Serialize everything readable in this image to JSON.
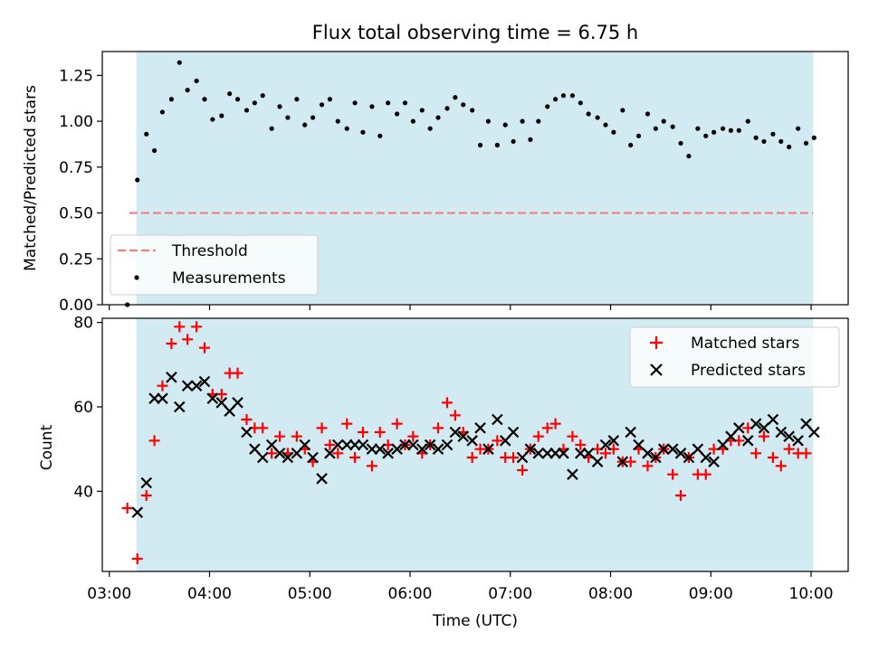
{
  "chart_data": [
    {
      "type": "scatter",
      "title": "Flux total observing time = 6.75 h",
      "ylabel": "Matched/Predicted stars",
      "xlabel": "",
      "x_unit": "hours UTC",
      "xlim": [
        2.93,
        10.37
      ],
      "ylim": [
        0,
        1.38
      ],
      "yticks": [
        "0.00",
        "0.25",
        "0.50",
        "0.75",
        "1.00",
        "1.25"
      ],
      "ytick_values": [
        0,
        0.25,
        0.5,
        0.75,
        1.0,
        1.25
      ],
      "observing_window": [
        3.27,
        10.02
      ],
      "threshold": {
        "label": "Threshold",
        "value": 0.5,
        "x_range": [
          3.2,
          10.02
        ],
        "color": "#f08080"
      },
      "legend": {
        "position": "lower-left",
        "entries": [
          "Threshold",
          "Measurements"
        ]
      },
      "series": [
        {
          "name": "Measurements",
          "color": "#000000",
          "points": [
            [
              3.18,
              0.0
            ],
            [
              3.28,
              0.68
            ],
            [
              3.37,
              0.93
            ],
            [
              3.45,
              0.84
            ],
            [
              3.53,
              1.05
            ],
            [
              3.62,
              1.12
            ],
            [
              3.7,
              1.32
            ],
            [
              3.78,
              1.17
            ],
            [
              3.87,
              1.22
            ],
            [
              3.95,
              1.12
            ],
            [
              4.03,
              1.01
            ],
            [
              4.12,
              1.03
            ],
            [
              4.2,
              1.15
            ],
            [
              4.28,
              1.12
            ],
            [
              4.37,
              1.06
            ],
            [
              4.45,
              1.1
            ],
            [
              4.53,
              1.14
            ],
            [
              4.62,
              0.96
            ],
            [
              4.7,
              1.08
            ],
            [
              4.78,
              1.02
            ],
            [
              4.87,
              1.12
            ],
            [
              4.95,
              0.98
            ],
            [
              5.03,
              1.02
            ],
            [
              5.12,
              1.09
            ],
            [
              5.2,
              1.12
            ],
            [
              5.28,
              1.0
            ],
            [
              5.37,
              0.96
            ],
            [
              5.45,
              1.1
            ],
            [
              5.53,
              0.94
            ],
            [
              5.62,
              1.08
            ],
            [
              5.7,
              0.92
            ],
            [
              5.78,
              1.1
            ],
            [
              5.87,
              1.04
            ],
            [
              5.95,
              1.1
            ],
            [
              6.03,
              1.0
            ],
            [
              6.12,
              1.06
            ],
            [
              6.2,
              0.96
            ],
            [
              6.28,
              1.02
            ],
            [
              6.37,
              1.07
            ],
            [
              6.45,
              1.13
            ],
            [
              6.53,
              1.09
            ],
            [
              6.62,
              1.06
            ],
            [
              6.7,
              0.87
            ],
            [
              6.78,
              1.0
            ],
            [
              6.87,
              0.87
            ],
            [
              6.95,
              0.98
            ],
            [
              7.03,
              0.89
            ],
            [
              7.12,
              1.0
            ],
            [
              7.2,
              0.9
            ],
            [
              7.28,
              1.0
            ],
            [
              7.37,
              1.08
            ],
            [
              7.45,
              1.12
            ],
            [
              7.53,
              1.14
            ],
            [
              7.62,
              1.14
            ],
            [
              7.7,
              1.1
            ],
            [
              7.78,
              1.04
            ],
            [
              7.87,
              1.02
            ],
            [
              7.95,
              0.98
            ],
            [
              8.03,
              0.94
            ],
            [
              8.12,
              1.06
            ],
            [
              8.2,
              0.87
            ],
            [
              8.28,
              0.92
            ],
            [
              8.37,
              1.04
            ],
            [
              8.45,
              0.96
            ],
            [
              8.53,
              1.0
            ],
            [
              8.62,
              0.97
            ],
            [
              8.7,
              0.88
            ],
            [
              8.78,
              0.81
            ],
            [
              8.87,
              0.96
            ],
            [
              8.95,
              0.92
            ],
            [
              9.03,
              0.94
            ],
            [
              9.12,
              0.96
            ],
            [
              9.2,
              0.95
            ],
            [
              9.28,
              0.95
            ],
            [
              9.37,
              1.0
            ],
            [
              9.45,
              0.91
            ],
            [
              9.53,
              0.89
            ],
            [
              9.62,
              0.93
            ],
            [
              9.7,
              0.89
            ],
            [
              9.78,
              0.86
            ],
            [
              9.87,
              0.96
            ],
            [
              9.95,
              0.88
            ],
            [
              10.03,
              0.91
            ]
          ]
        }
      ]
    },
    {
      "type": "scatter",
      "title": "",
      "ylabel": "Count",
      "xlabel": "Time (UTC)",
      "x_unit": "hours UTC",
      "xlim": [
        2.93,
        10.37
      ],
      "ylim": [
        21,
        81
      ],
      "yticks": [
        "40",
        "60",
        "80"
      ],
      "ytick_values": [
        40,
        60,
        80
      ],
      "xticks": [
        "03:00",
        "04:00",
        "05:00",
        "06:00",
        "07:00",
        "08:00",
        "09:00",
        "10:00"
      ],
      "xtick_values": [
        3,
        4,
        5,
        6,
        7,
        8,
        9,
        10
      ],
      "observing_window": [
        3.27,
        10.02
      ],
      "legend": {
        "position": "top-right",
        "entries": [
          "Matched stars",
          "Predicted stars"
        ]
      },
      "series": [
        {
          "name": "Matched stars",
          "marker": "plus",
          "color": "#ff0000",
          "values": [
            36,
            24,
            39,
            52,
            65,
            75,
            79,
            76,
            79,
            74,
            63,
            63,
            68,
            68,
            57,
            55,
            55,
            49,
            53,
            49,
            53,
            50,
            47,
            55,
            51,
            49,
            56,
            48,
            54,
            46,
            54,
            51,
            56,
            51,
            53,
            49,
            51,
            55,
            61,
            58,
            54,
            48,
            50,
            50,
            52,
            48,
            48,
            45,
            50,
            53,
            55,
            56,
            50,
            53,
            51,
            48,
            50,
            49,
            50,
            47,
            47,
            50,
            46,
            48,
            50,
            44,
            39,
            48,
            44,
            44,
            50,
            50,
            52,
            52,
            55,
            49,
            53,
            48,
            46,
            50,
            49,
            49
          ]
        },
        {
          "name": "Predicted stars",
          "marker": "x",
          "color": "#000000",
          "values": [
            35,
            42,
            62,
            62,
            67,
            60,
            65,
            65,
            66,
            62,
            61,
            59,
            61,
            54,
            50,
            48,
            51,
            49,
            48,
            49,
            51,
            48,
            43,
            49,
            51,
            51,
            51,
            51,
            50,
            50,
            49,
            50,
            51,
            51,
            50,
            51,
            50,
            51,
            54,
            53,
            52,
            55,
            50,
            57,
            52,
            54,
            48,
            50,
            49,
            49,
            49,
            49,
            44,
            49,
            49,
            47,
            51,
            52,
            47,
            54,
            51,
            49,
            48,
            50,
            50,
            49,
            48,
            50,
            48,
            47,
            51,
            53,
            55,
            52,
            56,
            55,
            57,
            54,
            53,
            52,
            56,
            54
          ]
        }
      ]
    }
  ]
}
